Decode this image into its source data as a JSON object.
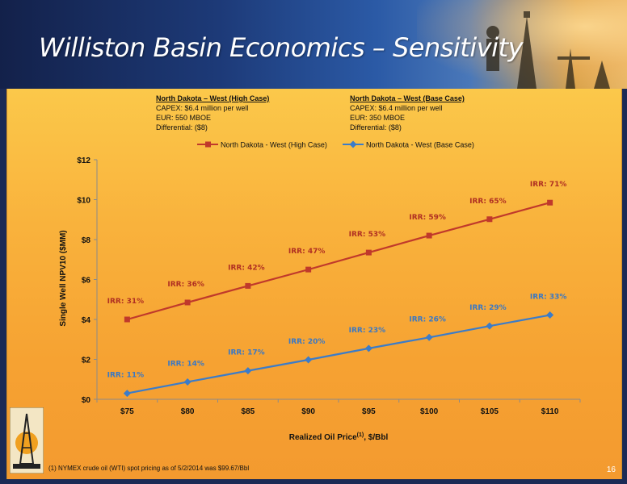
{
  "title": "Williston Basin Economics – Sensitivity",
  "cases": [
    {
      "heading": "North Dakota – West (High Case)",
      "lines": [
        "CAPEX: $6.4 million per well",
        "EUR: 550 MBOE",
        "Differential: ($8)"
      ]
    },
    {
      "heading": "North Dakota – West (Base Case)",
      "lines": [
        "CAPEX: $6.4 million per well",
        "EUR: 350 MBOE",
        "Differential: ($8)"
      ]
    }
  ],
  "chart_data": {
    "type": "line",
    "categories": [
      "$75",
      "$80",
      "$85",
      "$90",
      "$95",
      "$100",
      "$105",
      "$110"
    ],
    "series": [
      {
        "name": "North Dakota - West (High Case)",
        "color": "#c0392b",
        "marker": "square",
        "values": [
          4.0,
          4.85,
          5.68,
          6.5,
          7.35,
          8.2,
          9.02,
          9.85
        ],
        "labels": [
          "IRR: 31%",
          "IRR: 36%",
          "IRR: 42%",
          "IRR: 47%",
          "IRR: 53%",
          "IRR: 59%",
          "IRR: 65%",
          "IRR: 71%"
        ]
      },
      {
        "name": "North Dakota - West (Base Case)",
        "color": "#3b7cc9",
        "marker": "diamond",
        "values": [
          0.3,
          0.87,
          1.43,
          1.98,
          2.55,
          3.1,
          3.67,
          4.22
        ],
        "labels": [
          "IRR: 11%",
          "IRR: 14%",
          "IRR: 17%",
          "IRR: 20%",
          "IRR: 23%",
          "IRR: 26%",
          "IRR: 29%",
          "IRR: 33%"
        ]
      }
    ],
    "yticks": [
      "$0",
      "$2",
      "$4",
      "$6",
      "$8",
      "$10",
      "$12"
    ],
    "ylim": [
      0,
      12
    ],
    "xlabel": "Realized Oil Price",
    "xlabel_sup": "(1)",
    "xlabel_suffix": ", $/Bbl",
    "ylabel": "Single Well NPV10 ($MM)",
    "grid": false,
    "legend_position": "top"
  },
  "footnote": "(1) NYMEX crude oil (WTI) spot pricing as of 5/2/2014 was  $99.67/Bbl",
  "page_number": "16"
}
